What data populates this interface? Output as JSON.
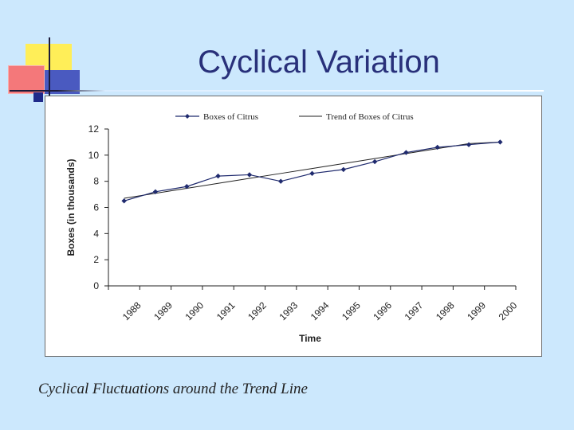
{
  "slide": {
    "title": "Cyclical Variation",
    "caption": "Cyclical Fluctuations around the Trend Line"
  },
  "colors": {
    "background": "#cce8fd",
    "title": "#28307a",
    "series": "#1f2a6e",
    "trend": "#222222"
  },
  "chart_data": {
    "type": "line",
    "title": "",
    "xlabel": "Time",
    "ylabel": "Boxes (in thousands)",
    "categories": [
      "1988",
      "1989",
      "1990",
      "1991",
      "1992",
      "1993",
      "1994",
      "1995",
      "1996",
      "1997",
      "1998",
      "1999",
      "2000"
    ],
    "series": [
      {
        "name": "Boxes of Citrus",
        "values": [
          6.5,
          7.2,
          7.6,
          8.4,
          8.5,
          8.0,
          8.6,
          8.9,
          9.5,
          10.2,
          10.6,
          10.8,
          11.0
        ],
        "marker": "diamond"
      },
      {
        "name": "Trend of Boxes of Citrus",
        "values": [
          6.7,
          7.08,
          7.46,
          7.84,
          8.22,
          8.6,
          8.98,
          9.36,
          9.74,
          10.12,
          10.5,
          10.88,
          11.0
        ],
        "marker": "none"
      }
    ],
    "ylim": [
      0,
      12
    ],
    "yticks": [
      "0",
      "2",
      "4",
      "6",
      "8",
      "10",
      "12"
    ],
    "grid": false,
    "legend": "top"
  }
}
